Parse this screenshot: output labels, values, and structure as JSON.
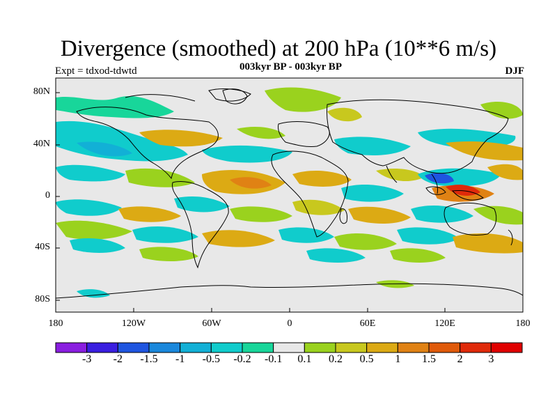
{
  "title": "Divergence (smoothed) at 200 hPa (10**6 m/s)",
  "subtitle": "003kyr BP - 003kyr BP",
  "left_label": "Expt = tdxod-tdwtd",
  "right_label": "DJF",
  "lat_labels": [
    "80N",
    "40N",
    "0",
    "40S",
    "80S"
  ],
  "lon_labels": [
    "180",
    "120W",
    "60W",
    "0",
    "60E",
    "120E",
    "180"
  ],
  "colorbar": {
    "labels": [
      "-3",
      "-2",
      "-1.5",
      "-1",
      "-0.5",
      "-0.2",
      "-0.1",
      "0.1",
      "0.2",
      "0.5",
      "1",
      "1.5",
      "2",
      "3"
    ],
    "colors": [
      "#8a1ee0",
      "#3a1ee0",
      "#1f55e0",
      "#1a88dc",
      "#12b0d6",
      "#10cccc",
      "#18d69a",
      "#e8e8e8",
      "#9ad21e",
      "#c8c81e",
      "#dcaa14",
      "#e08214",
      "#e05a0a",
      "#e02a0a",
      "#e00000"
    ]
  }
}
